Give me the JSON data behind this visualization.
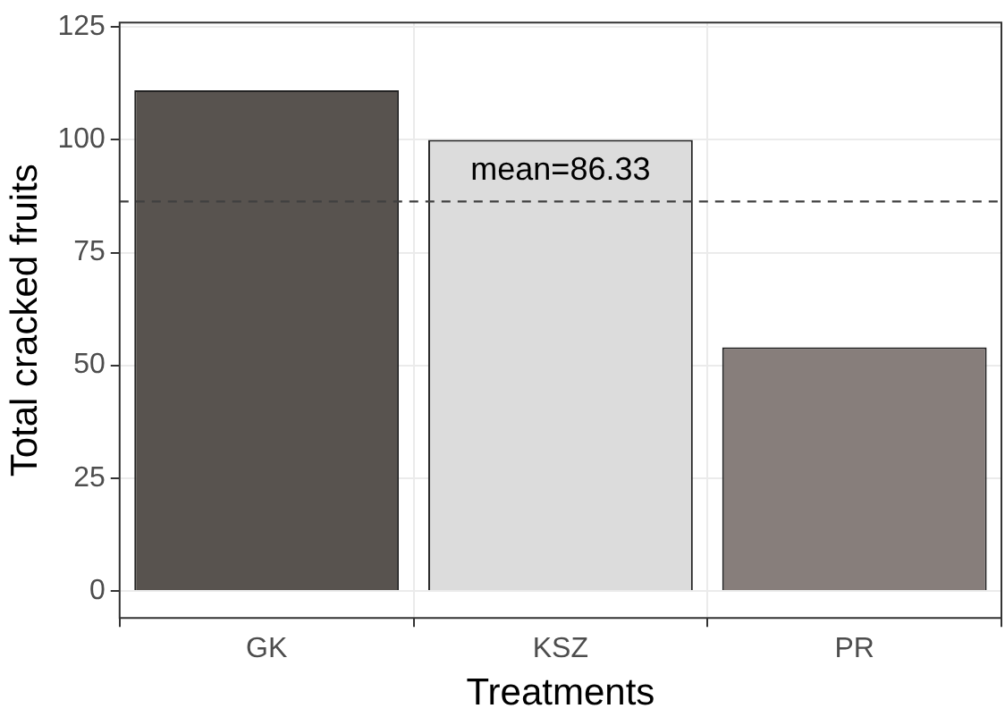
{
  "chart_data": {
    "type": "bar",
    "xlabel": "Treatments",
    "ylabel": "Total cracked fruits",
    "categories": [
      "GK",
      "KSZ",
      "PR"
    ],
    "values": [
      111,
      100,
      54
    ],
    "colors": [
      "#58534f",
      "#dcdcdc",
      "#877e7b"
    ],
    "ylim": [
      -6,
      126
    ],
    "yticks": [
      0,
      25,
      50,
      75,
      100,
      125
    ],
    "grid": true,
    "ref_lines": [
      {
        "axis": "y",
        "value": 86.33,
        "label": "mean=86.33",
        "line_style": "dashed",
        "color": "#404040"
      }
    ]
  }
}
